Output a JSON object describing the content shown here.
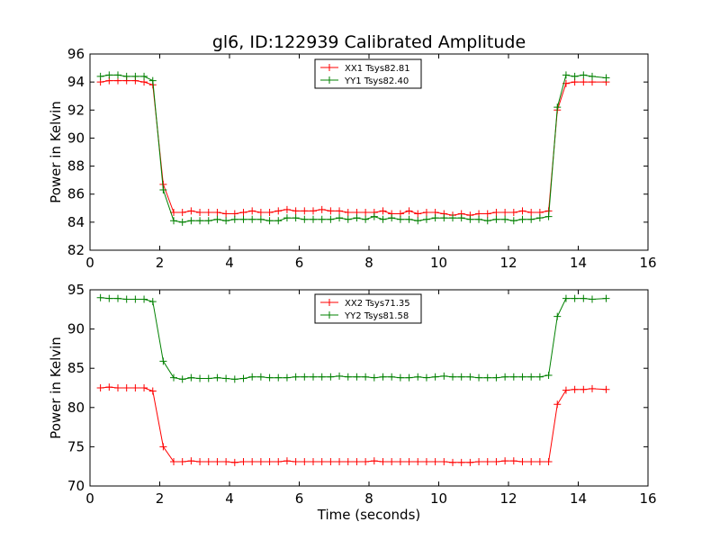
{
  "title": "gl6, ID:122939 Calibrated Amplitude",
  "chart_data": [
    {
      "type": "line",
      "ylabel": "Power in Kelvin",
      "xlabel": "",
      "xlim": [
        0,
        16
      ],
      "ylim": [
        82,
        96
      ],
      "xticks": [
        0,
        2,
        4,
        6,
        8,
        10,
        12,
        14,
        16
      ],
      "yticks": [
        82,
        84,
        86,
        88,
        90,
        92,
        94,
        96
      ],
      "legend_position": "top-center",
      "x": [
        0.3,
        0.55,
        0.8,
        1.05,
        1.3,
        1.55,
        1.8,
        2.1,
        2.4,
        2.65,
        2.9,
        3.15,
        3.4,
        3.65,
        3.9,
        4.15,
        4.4,
        4.65,
        4.9,
        5.15,
        5.4,
        5.65,
        5.9,
        6.15,
        6.4,
        6.65,
        6.9,
        7.15,
        7.4,
        7.65,
        7.9,
        8.15,
        8.4,
        8.65,
        8.9,
        9.15,
        9.4,
        9.65,
        9.9,
        10.15,
        10.4,
        10.65,
        10.9,
        11.15,
        11.4,
        11.65,
        11.9,
        12.15,
        12.4,
        12.65,
        12.9,
        13.15,
        13.4,
        13.65,
        13.9,
        14.15,
        14.4,
        14.8
      ],
      "series": [
        {
          "name": "XX1 Tsys82.81",
          "color": "#ff0000",
          "values": [
            94.0,
            94.1,
            94.1,
            94.1,
            94.1,
            94.0,
            93.8,
            86.7,
            84.7,
            84.7,
            84.8,
            84.7,
            84.7,
            84.7,
            84.6,
            84.6,
            84.7,
            84.8,
            84.7,
            84.7,
            84.8,
            84.9,
            84.8,
            84.8,
            84.8,
            84.9,
            84.8,
            84.8,
            84.7,
            84.7,
            84.7,
            84.7,
            84.8,
            84.6,
            84.6,
            84.8,
            84.6,
            84.7,
            84.7,
            84.6,
            84.5,
            84.6,
            84.5,
            84.6,
            84.6,
            84.7,
            84.7,
            84.7,
            84.8,
            84.7,
            84.7,
            84.8,
            92.0,
            93.9,
            94.0,
            94.0,
            94.0,
            94.0
          ]
        },
        {
          "name": "YY1 Tsys82.40",
          "color": "#008000",
          "values": [
            94.4,
            94.5,
            94.5,
            94.4,
            94.4,
            94.4,
            94.1,
            86.3,
            84.1,
            84.0,
            84.1,
            84.1,
            84.1,
            84.2,
            84.1,
            84.2,
            84.2,
            84.2,
            84.2,
            84.1,
            84.1,
            84.3,
            84.3,
            84.2,
            84.2,
            84.2,
            84.2,
            84.3,
            84.2,
            84.3,
            84.2,
            84.4,
            84.2,
            84.3,
            84.2,
            84.2,
            84.1,
            84.2,
            84.3,
            84.3,
            84.3,
            84.3,
            84.2,
            84.2,
            84.1,
            84.2,
            84.2,
            84.1,
            84.2,
            84.2,
            84.3,
            84.4,
            92.2,
            94.5,
            94.4,
            94.5,
            94.4,
            94.3
          ]
        }
      ]
    },
    {
      "type": "line",
      "ylabel": "Power in Kelvin",
      "xlabel": "Time (seconds)",
      "xlim": [
        0,
        16
      ],
      "ylim": [
        70,
        95
      ],
      "xticks": [
        0,
        2,
        4,
        6,
        8,
        10,
        12,
        14,
        16
      ],
      "yticks": [
        70,
        75,
        80,
        85,
        90,
        95
      ],
      "legend_position": "top-center",
      "x": [
        0.3,
        0.55,
        0.8,
        1.05,
        1.3,
        1.55,
        1.8,
        2.1,
        2.4,
        2.65,
        2.9,
        3.15,
        3.4,
        3.65,
        3.9,
        4.15,
        4.4,
        4.65,
        4.9,
        5.15,
        5.4,
        5.65,
        5.9,
        6.15,
        6.4,
        6.65,
        6.9,
        7.15,
        7.4,
        7.65,
        7.9,
        8.15,
        8.4,
        8.65,
        8.9,
        9.15,
        9.4,
        9.65,
        9.9,
        10.15,
        10.4,
        10.65,
        10.9,
        11.15,
        11.4,
        11.65,
        11.9,
        12.15,
        12.4,
        12.65,
        12.9,
        13.15,
        13.4,
        13.65,
        13.9,
        14.15,
        14.4,
        14.8
      ],
      "series": [
        {
          "name": "XX2 Tsys71.35",
          "color": "#ff0000",
          "values": [
            82.5,
            82.6,
            82.5,
            82.5,
            82.5,
            82.5,
            82.1,
            75.0,
            73.1,
            73.1,
            73.2,
            73.1,
            73.1,
            73.1,
            73.1,
            73.0,
            73.1,
            73.1,
            73.1,
            73.1,
            73.1,
            73.2,
            73.1,
            73.1,
            73.1,
            73.1,
            73.1,
            73.1,
            73.1,
            73.1,
            73.1,
            73.2,
            73.1,
            73.1,
            73.1,
            73.1,
            73.1,
            73.1,
            73.1,
            73.1,
            73.0,
            73.0,
            73.0,
            73.1,
            73.1,
            73.1,
            73.2,
            73.2,
            73.1,
            73.1,
            73.1,
            73.1,
            80.4,
            82.2,
            82.3,
            82.3,
            82.4,
            82.3
          ]
        },
        {
          "name": "YY2 Tsys81.58",
          "color": "#008000",
          "values": [
            94.0,
            93.9,
            93.9,
            93.8,
            93.8,
            93.8,
            93.5,
            85.9,
            83.8,
            83.6,
            83.8,
            83.7,
            83.7,
            83.8,
            83.7,
            83.6,
            83.7,
            83.9,
            83.9,
            83.8,
            83.8,
            83.8,
            83.9,
            83.9,
            83.9,
            83.9,
            83.9,
            84.0,
            83.9,
            83.9,
            83.9,
            83.8,
            83.9,
            83.9,
            83.8,
            83.8,
            83.9,
            83.8,
            83.9,
            84.0,
            83.9,
            83.9,
            83.9,
            83.8,
            83.8,
            83.8,
            83.9,
            83.9,
            83.9,
            83.9,
            83.9,
            84.1,
            91.6,
            93.9,
            93.9,
            93.9,
            93.8,
            93.9
          ]
        }
      ]
    }
  ]
}
